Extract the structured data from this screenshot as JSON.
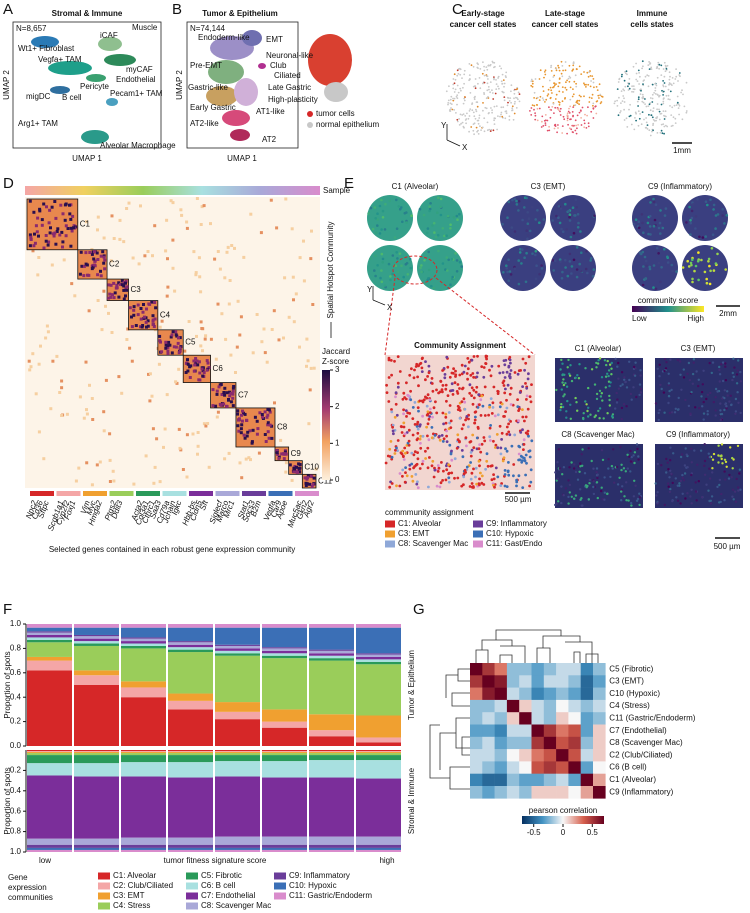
{
  "A": {
    "letter": "A",
    "title": "Stromal & Immune",
    "n": "N=8,657",
    "labels": [
      "iCAF",
      "Muscle",
      "Wt1+ Fibroblast",
      "myCAF",
      "Vegfa+ TAM",
      "Endothelial",
      "Pericyte",
      "Pecam1+ TAM",
      "migDC",
      "B cell",
      "Arg1+ TAM",
      "Alveolar Macrophage"
    ],
    "x_label": "UMAP 1",
    "y_label": "UMAP 2"
  },
  "B": {
    "letter": "B",
    "title": "Tumor & Epithelium",
    "n": "N=74,144",
    "labels": [
      "Endoderm-like",
      "EMT",
      "Pre-EMT",
      "Neuronal-like",
      "Club",
      "Ciliated",
      "Gastric-like",
      "Late Gastric",
      "High-plasticity",
      "Early Gastric",
      "AT1-like",
      "AT2-like",
      "AT2"
    ],
    "x_label": "UMAP 1",
    "y_label": "UMAP 2",
    "legend": [
      {
        "name": "tumor cells",
        "color": "#d62728"
      },
      {
        "name": "normal epithelium",
        "color": "#c8c8c8"
      }
    ]
  },
  "C": {
    "letter": "C",
    "titles": [
      [
        "Early-stage",
        "cancer cell states"
      ],
      [
        "Late-stage",
        "cancer cell states"
      ],
      [
        "Immune",
        "cells states"
      ]
    ],
    "axis_y": "Y",
    "axis_x": "X",
    "scale": "1mm"
  },
  "D": {
    "letter": "D",
    "sample": "Sample",
    "y_label": "Spatial Hotspot Community",
    "cbar_title": [
      "Jaccard",
      "Z-score"
    ],
    "cbar_lim": [
      0,
      3
    ],
    "cbar_ticks": [
      0,
      1,
      2,
      3
    ],
    "communities": [
      "C1",
      "C2",
      "C3",
      "C4",
      "C5",
      "C6",
      "C7",
      "C8",
      "C9",
      "C10",
      "C11"
    ],
    "gene_groups": [
      [
        "Npc2",
        "Cd36",
        "Sftpc"
      ],
      [
        "Scgb1a1",
        "Cyp2f2",
        "Foxj1"
      ],
      [
        "Vim",
        "Myc",
        "Hmga2"
      ],
      [
        "Ptgs2",
        "Ddit3"
      ],
      [
        "Acta2",
        "Col3a1",
        "Cthrc1",
        "Saa3"
      ],
      [
        "Cd79a",
        "Jchain",
        "Igkc"
      ],
      [
        "Hbb-bs",
        "Cldn5",
        "Sft"
      ],
      [
        "Siglecf",
        "Marco",
        "Mrc1"
      ],
      [
        "Stat1",
        "Socs3",
        "B2m"
      ],
      [
        "Vegfa",
        "Car9",
        "Apoe"
      ],
      [
        "Muc5ac",
        "Gkn2",
        "Agr2"
      ]
    ],
    "caption": "Selected genes contained in each robust gene expression community"
  },
  "E": {
    "letter": "E",
    "titles": [
      "C1 (Alveolar)",
      "C3 (EMT)",
      "C9 (Inflammatory)"
    ],
    "axis_y": "Y",
    "axis_x": "X",
    "cbar_title": "community score",
    "cbar_low": "Low",
    "cbar_high": "High",
    "scale_top": "2mm",
    "assign_title": "Community Assignment",
    "scale_assign": "500 µm",
    "legend_title": "commmunity assignment",
    "legend": [
      {
        "name": "C1: Alveolar",
        "color": "#d62728"
      },
      {
        "name": "C3: EMT",
        "color": "#f0a030"
      },
      {
        "name": "C8: Scavenger Mac",
        "color": "#8fa8d8"
      },
      {
        "name": "C9: Inflammatory",
        "color": "#6a3d9a"
      },
      {
        "name": "C10: Hypoxic",
        "color": "#3b6fb6"
      },
      {
        "name": "C11: Gast/Endo",
        "color": "#d98ccc"
      }
    ],
    "zoom_titles": [
      "C1 (Alveolar)",
      "C3 (EMT)",
      "C8 (Scavenger Mac)",
      "C9 (Inflammatory)"
    ],
    "scale_zoom": "500 µm"
  },
  "F": {
    "type": "bar",
    "stacked": true,
    "letter": "F",
    "y_label": "Proportion of spots",
    "x_low": "low",
    "x_label": "tumor fitness signature score",
    "x_high": "high",
    "legend_title": [
      "Gene",
      "expression",
      "communities"
    ],
    "communities": [
      {
        "name": "C1: Alveolar",
        "color": "#d62728"
      },
      {
        "name": "C2: Club/Ciliated",
        "color": "#f4a6a6"
      },
      {
        "name": "C3: EMT",
        "color": "#f0a030"
      },
      {
        "name": "C4: Stress",
        "color": "#9acd5a"
      },
      {
        "name": "C5: Fibrotic",
        "color": "#2a9a5a"
      },
      {
        "name": "C6: B cell",
        "color": "#a8e0e0"
      },
      {
        "name": "C7: Endothelial",
        "color": "#7b2e9a"
      },
      {
        "name": "C8: Scavenger Mac",
        "color": "#a9a8d8"
      },
      {
        "name": "C9: Inflammatory",
        "color": "#6a3d9a"
      },
      {
        "name": "C10: Hypoxic",
        "color": "#3b6fb6"
      },
      {
        "name": "C11: Gastric/Endoderm",
        "color": "#d98ccc"
      }
    ],
    "panels": [
      {
        "label": "Tumor & Epithelium",
        "ylim": [
          0,
          1
        ],
        "inverted": false,
        "yticks": [
          {
            "value": 0,
            "label": "0.0"
          },
          0.2,
          0.4,
          0.6,
          0.8,
          {
            "value": 1,
            "label": "1.0"
          }
        ],
        "values": [
          [
            0.62,
            0.5,
            0.4,
            0.3,
            0.22,
            0.15,
            0.08,
            0.03
          ],
          [
            0.08,
            0.08,
            0.08,
            0.07,
            0.06,
            0.05,
            0.05,
            0.04
          ],
          [
            0.03,
            0.04,
            0.05,
            0.06,
            0.08,
            0.1,
            0.13,
            0.18
          ],
          [
            0.12,
            0.2,
            0.27,
            0.34,
            0.38,
            0.42,
            0.44,
            0.42
          ],
          [
            0.02,
            0.02,
            0.02,
            0.02,
            0.02,
            0.02,
            0.02,
            0.02
          ],
          [
            0.02,
            0.02,
            0.02,
            0.02,
            0.02,
            0.02,
            0.02,
            0.02
          ],
          [
            0.02,
            0.02,
            0.02,
            0.02,
            0.02,
            0.02,
            0.02,
            0.02
          ],
          [
            0.02,
            0.02,
            0.02,
            0.02,
            0.02,
            0.02,
            0.02,
            0.02
          ],
          [
            0.01,
            0.01,
            0.01,
            0.01,
            0.01,
            0.01,
            0.01,
            0.01
          ],
          [
            0.03,
            0.06,
            0.08,
            0.11,
            0.14,
            0.16,
            0.18,
            0.21
          ],
          [
            0.03,
            0.03,
            0.03,
            0.03,
            0.03,
            0.03,
            0.03,
            0.03
          ]
        ]
      },
      {
        "label": "Stromal & Immune",
        "ylim": [
          0,
          1
        ],
        "inverted": true,
        "yticks": [
          0.2,
          0.4,
          0.6,
          0.8,
          {
            "value": 1,
            "label": "1.0"
          }
        ],
        "values": [
          [
            0.01,
            0.01,
            0.01,
            0.01,
            0.01,
            0.01,
            0.01,
            0.01
          ],
          [
            0.01,
            0.01,
            0.01,
            0.01,
            0.01,
            0.01,
            0.01,
            0.01
          ],
          [
            0.01,
            0.01,
            0.01,
            0.01,
            0.01,
            0.01,
            0.01,
            0.01
          ],
          [
            0.02,
            0.02,
            0.02,
            0.02,
            0.02,
            0.02,
            0.02,
            0.02
          ],
          [
            0.08,
            0.08,
            0.07,
            0.07,
            0.06,
            0.06,
            0.05,
            0.05
          ],
          [
            0.12,
            0.13,
            0.14,
            0.15,
            0.15,
            0.16,
            0.17,
            0.18
          ],
          [
            0.62,
            0.61,
            0.6,
            0.59,
            0.59,
            0.58,
            0.58,
            0.57
          ],
          [
            0.06,
            0.06,
            0.07,
            0.07,
            0.08,
            0.08,
            0.08,
            0.08
          ],
          [
            0.03,
            0.03,
            0.03,
            0.03,
            0.03,
            0.03,
            0.03,
            0.03
          ],
          [
            0.02,
            0.02,
            0.02,
            0.02,
            0.02,
            0.02,
            0.02,
            0.02
          ],
          [
            0.02,
            0.02,
            0.02,
            0.02,
            0.02,
            0.02,
            0.02,
            0.02
          ]
        ]
      }
    ]
  },
  "G": {
    "type": "heatmap",
    "letter": "G",
    "labels": [
      "C5 (Fibrotic)",
      "C3 (EMT)",
      "C10 (Hypoxic)",
      "C4 (Stress)",
      "C11 (Gastric/Endoderm)",
      "C7 (Endothelial)",
      "C8 (Scavenger Mac)",
      "C2 (Club/Ciliated)",
      "C6 (B cell)",
      "C1 (Alveolar)",
      "C9 (Inflammatory)"
    ],
    "matrix": [
      [
        1,
        0.5,
        0.3,
        -0.2,
        -0.2,
        -0.3,
        -0.2,
        -0.1,
        -0.1,
        -0.4,
        -0.2
      ],
      [
        0.5,
        1,
        0.6,
        -0.2,
        -0.1,
        -0.3,
        -0.1,
        -0.1,
        -0.2,
        -0.5,
        -0.3
      ],
      [
        0.3,
        0.6,
        1,
        -0.1,
        -0.2,
        -0.4,
        -0.3,
        -0.2,
        -0.3,
        -0.5,
        -0.2
      ],
      [
        -0.2,
        -0.2,
        -0.1,
        1,
        0.1,
        -0.1,
        -0.2,
        0,
        -0.1,
        -0.2,
        -0.1
      ],
      [
        -0.2,
        -0.1,
        -0.2,
        0.1,
        1,
        -0.1,
        -0.2,
        0.1,
        0,
        -0.3,
        -0.2
      ],
      [
        -0.3,
        -0.3,
        -0.4,
        -0.1,
        -0.1,
        1,
        0.5,
        0.3,
        0.4,
        -0.3,
        0.1
      ],
      [
        -0.2,
        -0.1,
        -0.3,
        -0.2,
        -0.2,
        0.5,
        1,
        0.4,
        0.5,
        -0.2,
        0.1
      ],
      [
        -0.1,
        -0.1,
        -0.2,
        0,
        0.1,
        0.3,
        0.4,
        1,
        0.4,
        -0.1,
        0.1
      ],
      [
        -0.1,
        -0.2,
        -0.3,
        -0.1,
        0,
        0.4,
        0.5,
        0.4,
        1,
        -0.3,
        0
      ],
      [
        -0.4,
        -0.5,
        -0.5,
        -0.2,
        -0.3,
        -0.3,
        -0.2,
        -0.1,
        -0.3,
        1,
        0.2
      ],
      [
        -0.2,
        -0.3,
        -0.2,
        -0.1,
        -0.2,
        0.1,
        0.1,
        0.1,
        0,
        0.2,
        1
      ]
    ],
    "cbar_title": "pearson correlation",
    "clim": [
      -0.7,
      0.7
    ],
    "cbar_ticks": [
      -0.5,
      0,
      0.5
    ]
  }
}
